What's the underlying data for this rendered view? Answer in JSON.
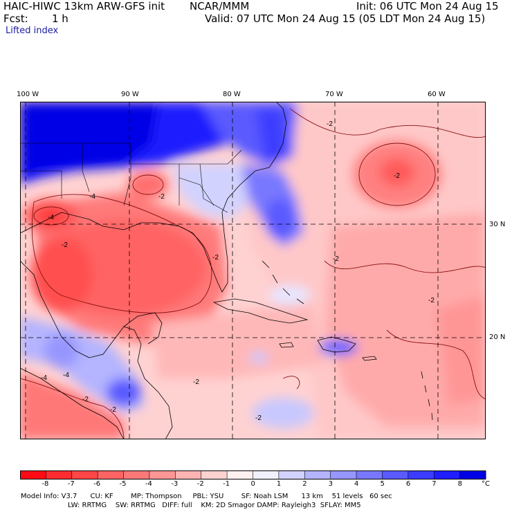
{
  "header": {
    "title": "HAIC-HIWC 13km ARW-GFS init",
    "org": "NCAR/MMM",
    "init": "Init: 06 UTC Mon 24 Aug 15",
    "fcst_label": "Fcst:",
    "fcst_value": "1 h",
    "valid": "Valid: 07 UTC Mon 24 Aug 15 (05 LDT Mon 24 Aug 15)",
    "field": "Lifted index"
  },
  "axes": {
    "longitudes": [
      "100 W",
      "90 W",
      "80 W",
      "70 W",
      "60 W"
    ],
    "latitudes": [
      "30 N",
      "20 N"
    ]
  },
  "contour_labels": [
    "-2",
    "-2",
    "-4",
    "-4",
    "-2",
    "-2",
    "-2",
    "-2",
    "-2",
    "-4",
    "-2",
    "-4",
    "-2",
    "-2",
    "-2"
  ],
  "colorbar": {
    "unit": "°C",
    "colors": [
      "#ff0a14",
      "#ff2d32",
      "#ff4646",
      "#ff6464",
      "#fa7878",
      "#ff9696",
      "#ffb4b4",
      "#ffd2d2",
      "#fff0f0",
      "#f0f0ff",
      "#d2d2ff",
      "#b4b4ff",
      "#9696ff",
      "#7878ff",
      "#5a5aff",
      "#3c3cff",
      "#1e1eff",
      "#0000e6"
    ],
    "tick_labels": [
      "-8",
      "-7",
      "-6",
      "-5",
      "-4",
      "-3",
      "-2",
      "-1",
      "0",
      "1",
      "2",
      "3",
      "4",
      "5",
      "6",
      "7",
      "8"
    ]
  },
  "model_info": {
    "line1": "Model Info: V3.7      CU: KF        MP: Thompson     PBL: YSU        SF: Noah LSM      13 km    51 levels   60 sec",
    "line2": "LW: RRTMG    SW: RRTMG   DIFF: full    KM: 2D Smagor DAMP: Rayleigh3  SFLAY: MM5"
  }
}
